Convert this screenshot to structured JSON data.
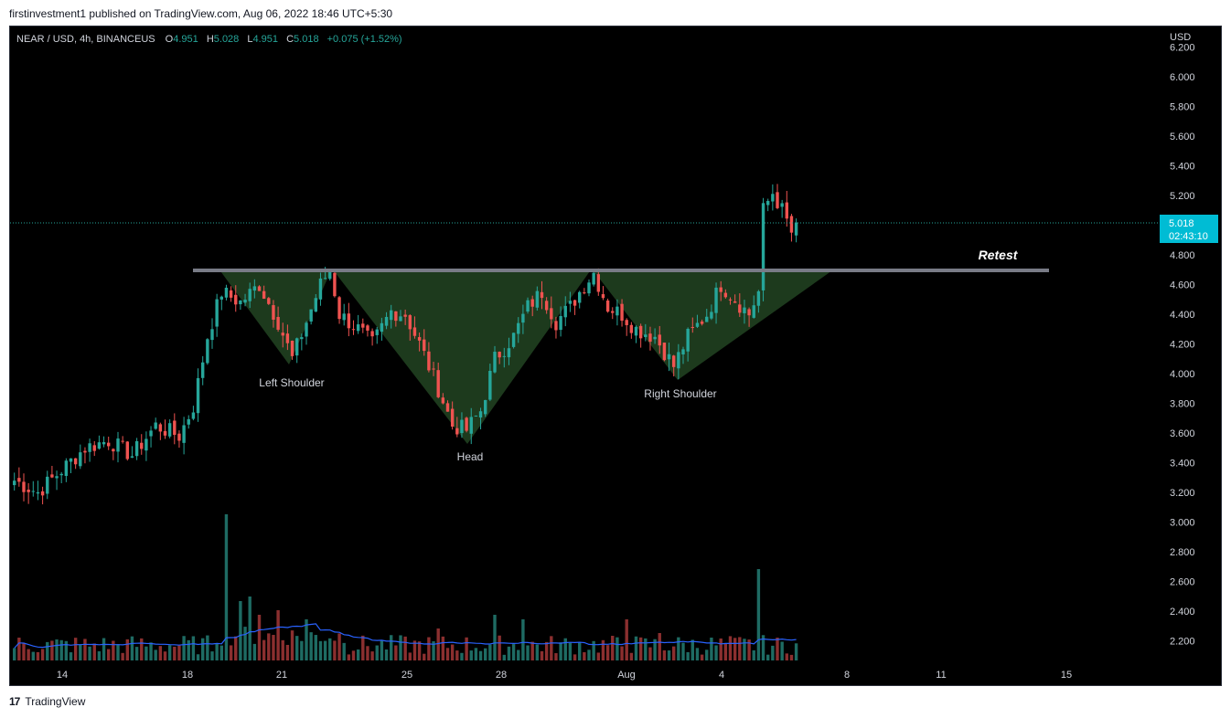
{
  "header": {
    "published_text": "firstinvestment1 published on TradingView.com, Aug 06, 2022 18:46 UTC+5:30"
  },
  "legend": {
    "symbol": "NEAR / USD, 4h, BINANCEUS",
    "o_label": "O",
    "o_value": "4.951",
    "h_label": "H",
    "h_value": "5.028",
    "l_label": "L",
    "l_value": "4.951",
    "c_label": "C",
    "c_value": "5.018",
    "change": "+0.075 (+1.52%)"
  },
  "price_axis": {
    "currency": "USD",
    "ticks": [
      "6.200",
      "6.000",
      "5.800",
      "5.600",
      "5.400",
      "5.200",
      "4.800",
      "4.600",
      "4.400",
      "4.200",
      "4.000",
      "3.800",
      "3.600",
      "3.400",
      "3.200",
      "3.000",
      "2.800",
      "2.600",
      "2.400",
      "2.200"
    ],
    "last_price": "5.018",
    "countdown": "02:43:10"
  },
  "annotations": {
    "retest": "Retest",
    "left_shoulder": "Left Shoulder",
    "head": "Head",
    "right_shoulder": "Right Shoulder"
  },
  "footer": {
    "brand": "TradingView"
  },
  "colors": {
    "up": "#26a69a",
    "down": "#ef5350",
    "vol_up": "#1e6b63",
    "vol_down": "#8b2f2f",
    "pattern_fill": "#1f3d1f",
    "neckline": "#787b86",
    "volume_ma": "#2962ff",
    "price_badge": "#00bcd4"
  },
  "chart_data": {
    "type": "candlestick",
    "symbol": "NEAR / USD",
    "interval": "4h",
    "exchange": "BINANCEUS",
    "x_ticks": [
      "14",
      "18",
      "21",
      "25",
      "28",
      "Aug",
      "4",
      "8",
      "11",
      "15"
    ],
    "y_range": [
      2.1,
      6.2
    ],
    "pattern": "inverse head and shoulders",
    "neckline_price": 4.7,
    "points": {
      "left_shoulder_low": 4.05,
      "head_low": 3.55,
      "right_shoulder_low": 3.96,
      "breakout_high": 5.28
    },
    "anchors": [
      {
        "i": 0,
        "p": 3.28
      },
      {
        "i": 5,
        "p": 3.2
      },
      {
        "i": 10,
        "p": 3.35
      },
      {
        "i": 15,
        "p": 3.5
      },
      {
        "i": 20,
        "p": 3.55
      },
      {
        "i": 25,
        "p": 3.45
      },
      {
        "i": 30,
        "p": 3.65
      },
      {
        "i": 35,
        "p": 3.58
      },
      {
        "i": 38,
        "p": 3.78
      },
      {
        "i": 41,
        "p": 4.25
      },
      {
        "i": 44,
        "p": 4.55
      },
      {
        "i": 48,
        "p": 4.48
      },
      {
        "i": 52,
        "p": 4.6
      },
      {
        "i": 56,
        "p": 4.35
      },
      {
        "i": 59,
        "p": 4.1
      },
      {
        "i": 62,
        "p": 4.35
      },
      {
        "i": 65,
        "p": 4.6
      },
      {
        "i": 67,
        "p": 4.7
      },
      {
        "i": 69,
        "p": 4.4
      },
      {
        "i": 73,
        "p": 4.3
      },
      {
        "i": 76,
        "p": 4.2
      },
      {
        "i": 80,
        "p": 4.42
      },
      {
        "i": 83,
        "p": 4.4
      },
      {
        "i": 86,
        "p": 4.2
      },
      {
        "i": 90,
        "p": 3.9
      },
      {
        "i": 93,
        "p": 3.65
      },
      {
        "i": 96,
        "p": 3.62
      },
      {
        "i": 99,
        "p": 3.75
      },
      {
        "i": 102,
        "p": 4.1
      },
      {
        "i": 106,
        "p": 4.25
      },
      {
        "i": 109,
        "p": 4.45
      },
      {
        "i": 112,
        "p": 4.55
      },
      {
        "i": 115,
        "p": 4.35
      },
      {
        "i": 118,
        "p": 4.45
      },
      {
        "i": 121,
        "p": 4.6
      },
      {
        "i": 123,
        "p": 4.68
      },
      {
        "i": 126,
        "p": 4.45
      },
      {
        "i": 129,
        "p": 4.4
      },
      {
        "i": 132,
        "p": 4.3
      },
      {
        "i": 136,
        "p": 4.25
      },
      {
        "i": 140,
        "p": 4.05
      },
      {
        "i": 143,
        "p": 4.25
      },
      {
        "i": 147,
        "p": 4.4
      },
      {
        "i": 150,
        "p": 4.6
      },
      {
        "i": 153,
        "p": 4.5
      },
      {
        "i": 156,
        "p": 4.4
      },
      {
        "i": 158,
        "p": 4.55
      },
      {
        "i": 159,
        "p": 5.1
      },
      {
        "i": 161,
        "p": 5.22
      },
      {
        "i": 163,
        "p": 5.1
      },
      {
        "i": 165,
        "p": 4.95
      },
      {
        "i": 166,
        "p": 5.018
      }
    ]
  }
}
